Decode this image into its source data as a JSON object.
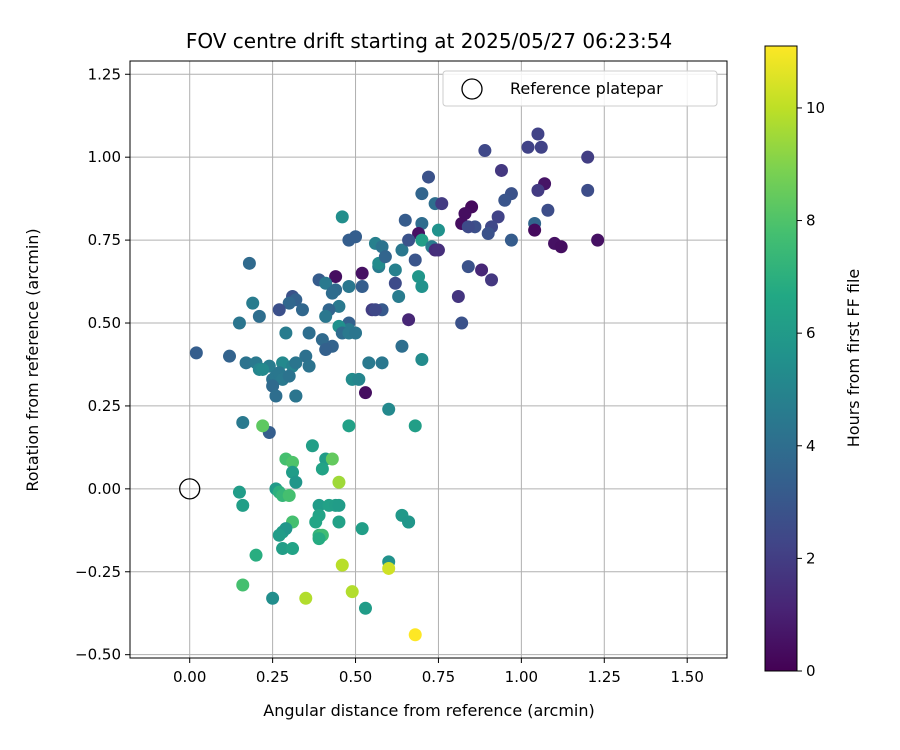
{
  "chart_data": {
    "type": "scatter",
    "title": "FOV centre drift starting at 2025/05/27 06:23:54",
    "xlabel": "Angular distance from reference (arcmin)",
    "ylabel": "Rotation from reference (arcmin)",
    "xlim": [
      -0.18,
      1.62
    ],
    "ylim": [
      -0.51,
      1.29
    ],
    "xticks": [
      0.0,
      0.25,
      0.5,
      0.75,
      1.0,
      1.25,
      1.5
    ],
    "xtick_labels": [
      "0.00",
      "0.25",
      "0.50",
      "0.75",
      "1.00",
      "1.25",
      "1.50"
    ],
    "yticks": [
      -0.5,
      -0.25,
      0.0,
      0.25,
      0.5,
      0.75,
      1.0,
      1.25
    ],
    "ytick_labels": [
      "−0.50",
      "−0.25",
      "0.00",
      "0.25",
      "0.50",
      "0.75",
      "1.00",
      "1.25"
    ],
    "grid": true,
    "legend": {
      "position": "top-right",
      "entries": [
        {
          "label": "Reference platepar",
          "marker": "open-circle",
          "x": 0.0,
          "y": 0.0
        }
      ]
    },
    "colorbar": {
      "label": "Hours from first FF file",
      "colormap": "viridis",
      "range": [
        0,
        11.1
      ],
      "ticks": [
        0,
        2,
        4,
        6,
        8,
        10
      ],
      "tick_labels": [
        "0",
        "2",
        "4",
        "6",
        "8",
        "10"
      ]
    },
    "series": [
      {
        "points": [
          [
            1.05,
            1.07,
            2.2
          ],
          [
            0.89,
            1.02,
            2.4
          ],
          [
            1.02,
            1.03,
            2.2
          ],
          [
            1.06,
            1.03,
            2.2
          ],
          [
            1.2,
            1.0,
            2.0
          ],
          [
            0.94,
            0.96,
            1.8
          ],
          [
            0.72,
            0.94,
            2.8
          ],
          [
            1.07,
            0.92,
            0.6
          ],
          [
            1.05,
            0.9,
            1.9
          ],
          [
            0.7,
            0.89,
            3.6
          ],
          [
            0.97,
            0.89,
            2.8
          ],
          [
            1.2,
            0.9,
            2.6
          ],
          [
            0.74,
            0.86,
            4.0
          ],
          [
            0.76,
            0.86,
            1.9
          ],
          [
            0.85,
            0.85,
            0.3
          ],
          [
            1.08,
            0.84,
            2.6
          ],
          [
            0.83,
            0.83,
            0.4
          ],
          [
            0.95,
            0.87,
            2.9
          ],
          [
            0.93,
            0.82,
            2.2
          ],
          [
            0.46,
            0.82,
            5.4
          ],
          [
            0.65,
            0.81,
            3.2
          ],
          [
            0.7,
            0.8,
            3.9
          ],
          [
            0.82,
            0.8,
            0.4
          ],
          [
            0.86,
            0.79,
            2.7
          ],
          [
            0.84,
            0.79,
            2.5
          ],
          [
            0.91,
            0.79,
            2.4
          ],
          [
            1.04,
            0.8,
            3.6
          ],
          [
            0.9,
            0.77,
            2.8
          ],
          [
            0.69,
            0.77,
            0.5
          ],
          [
            0.75,
            0.78,
            5.6
          ],
          [
            1.04,
            0.78,
            0.3
          ],
          [
            0.64,
            0.72,
            4.4
          ],
          [
            0.66,
            0.75,
            2.8
          ],
          [
            0.7,
            0.75,
            6.2
          ],
          [
            0.73,
            0.73,
            4.6
          ],
          [
            0.5,
            0.76,
            3.3
          ],
          [
            0.48,
            0.75,
            3.3
          ],
          [
            0.56,
            0.74,
            4.8
          ],
          [
            0.58,
            0.73,
            4.2
          ],
          [
            0.97,
            0.75,
            3.2
          ],
          [
            1.1,
            0.74,
            0.5
          ],
          [
            1.12,
            0.73,
            0.4
          ],
          [
            1.23,
            0.75,
            0.5
          ],
          [
            0.74,
            0.72,
            1.4
          ],
          [
            0.75,
            0.72,
            1.5
          ],
          [
            0.68,
            0.69,
            2.9
          ],
          [
            0.57,
            0.67,
            4.6
          ],
          [
            0.18,
            0.68,
            3.8
          ],
          [
            0.57,
            0.68,
            5.3
          ],
          [
            0.59,
            0.7,
            3.6
          ],
          [
            0.62,
            0.66,
            4.8
          ],
          [
            0.52,
            0.65,
            0.5
          ],
          [
            0.44,
            0.64,
            0.4
          ],
          [
            0.84,
            0.67,
            2.8
          ],
          [
            0.88,
            0.66,
            1.2
          ],
          [
            0.91,
            0.63,
            1.8
          ],
          [
            0.39,
            0.63,
            3.2
          ],
          [
            0.41,
            0.62,
            4.5
          ],
          [
            0.52,
            0.61,
            3.3
          ],
          [
            0.62,
            0.62,
            2.5
          ],
          [
            0.69,
            0.64,
            5.8
          ],
          [
            0.7,
            0.61,
            5.6
          ],
          [
            0.48,
            0.61,
            4.4
          ],
          [
            0.44,
            0.6,
            3.8
          ],
          [
            0.43,
            0.59,
            3.9
          ],
          [
            0.31,
            0.58,
            2.8
          ],
          [
            0.32,
            0.57,
            3.4
          ],
          [
            0.3,
            0.56,
            3.7
          ],
          [
            0.34,
            0.54,
            3.7
          ],
          [
            0.19,
            0.56,
            4.6
          ],
          [
            0.63,
            0.58,
            4.6
          ],
          [
            0.81,
            0.58,
            1.7
          ],
          [
            0.45,
            0.55,
            4.5
          ],
          [
            0.42,
            0.54,
            3.6
          ],
          [
            0.55,
            0.54,
            2.0
          ],
          [
            0.58,
            0.54,
            3.1
          ],
          [
            0.56,
            0.54,
            2.4
          ],
          [
            0.27,
            0.54,
            2.7
          ],
          [
            0.41,
            0.52,
            4.4
          ],
          [
            0.21,
            0.52,
            4.0
          ],
          [
            0.15,
            0.5,
            4.3
          ],
          [
            0.48,
            0.5,
            3.4
          ],
          [
            0.48,
            0.48,
            4.5
          ],
          [
            0.45,
            0.49,
            5.5
          ],
          [
            0.82,
            0.5,
            2.8
          ],
          [
            0.66,
            0.51,
            1.2
          ],
          [
            0.29,
            0.47,
            4.6
          ],
          [
            0.36,
            0.47,
            4.0
          ],
          [
            0.46,
            0.47,
            3.9
          ],
          [
            0.48,
            0.47,
            4.5
          ],
          [
            0.5,
            0.47,
            4.3
          ],
          [
            0.4,
            0.45,
            3.8
          ],
          [
            0.43,
            0.43,
            3.5
          ],
          [
            0.64,
            0.43,
            4.0
          ],
          [
            0.35,
            0.4,
            4.1
          ],
          [
            0.41,
            0.42,
            3.4
          ],
          [
            0.02,
            0.41,
            3.3
          ],
          [
            0.12,
            0.4,
            3.5
          ],
          [
            0.17,
            0.38,
            4.2
          ],
          [
            0.2,
            0.38,
            4.5
          ],
          [
            0.24,
            0.37,
            4.6
          ],
          [
            0.28,
            0.38,
            5.2
          ],
          [
            0.31,
            0.37,
            4.9
          ],
          [
            0.32,
            0.38,
            4.3
          ],
          [
            0.36,
            0.37,
            4.2
          ],
          [
            0.54,
            0.38,
            4.5
          ],
          [
            0.58,
            0.38,
            4.4
          ],
          [
            0.7,
            0.39,
            5.3
          ],
          [
            0.21,
            0.36,
            5.0
          ],
          [
            0.22,
            0.36,
            5.2
          ],
          [
            0.25,
            0.33,
            4.1
          ],
          [
            0.26,
            0.34,
            4.4
          ],
          [
            0.27,
            0.35,
            4.4
          ],
          [
            0.28,
            0.33,
            4.5
          ],
          [
            0.3,
            0.34,
            4.2
          ],
          [
            0.25,
            0.31,
            3.8
          ],
          [
            0.26,
            0.28,
            4.0
          ],
          [
            0.32,
            0.28,
            3.9
          ],
          [
            0.32,
            0.28,
            4.3
          ],
          [
            0.49,
            0.33,
            5.3
          ],
          [
            0.51,
            0.33,
            5.0
          ],
          [
            0.53,
            0.29,
            0.4
          ],
          [
            0.6,
            0.24,
            5.2
          ],
          [
            0.16,
            0.2,
            4.5
          ],
          [
            0.24,
            0.17,
            3.3
          ],
          [
            0.22,
            0.19,
            8.3
          ],
          [
            0.68,
            0.19,
            6.2
          ],
          [
            0.48,
            0.19,
            6.3
          ],
          [
            0.37,
            0.13,
            6.2
          ],
          [
            0.29,
            0.09,
            7.8
          ],
          [
            0.31,
            0.08,
            8.0
          ],
          [
            0.41,
            0.09,
            6.1
          ],
          [
            0.43,
            0.09,
            8.4
          ],
          [
            0.4,
            0.06,
            6.4
          ],
          [
            0.31,
            0.05,
            6.1
          ],
          [
            0.32,
            0.02,
            5.8
          ],
          [
            0.45,
            0.02,
            9.5
          ],
          [
            0.15,
            -0.01,
            6.1
          ],
          [
            0.26,
            0.0,
            6.0
          ],
          [
            0.27,
            -0.01,
            7.0
          ],
          [
            0.28,
            -0.02,
            7.3
          ],
          [
            0.3,
            -0.02,
            7.8
          ],
          [
            0.16,
            -0.05,
            6.2
          ],
          [
            0.39,
            -0.05,
            6.1
          ],
          [
            0.42,
            -0.05,
            6.3
          ],
          [
            0.44,
            -0.05,
            6.2
          ],
          [
            0.45,
            -0.05,
            6.1
          ],
          [
            0.39,
            -0.08,
            6.4
          ],
          [
            0.64,
            -0.08,
            5.9
          ],
          [
            0.66,
            -0.1,
            5.9
          ],
          [
            0.66,
            -0.1,
            5.8
          ],
          [
            0.31,
            -0.1,
            7.8
          ],
          [
            0.38,
            -0.1,
            6.5
          ],
          [
            0.45,
            -0.1,
            6.3
          ],
          [
            0.52,
            -0.12,
            6.2
          ],
          [
            0.28,
            -0.13,
            6.2
          ],
          [
            0.29,
            -0.12,
            5.8
          ],
          [
            0.27,
            -0.14,
            6.1
          ],
          [
            0.39,
            -0.14,
            7.2
          ],
          [
            0.4,
            -0.14,
            7.6
          ],
          [
            0.39,
            -0.15,
            6.8
          ],
          [
            0.28,
            -0.18,
            6.2
          ],
          [
            0.31,
            -0.18,
            6.4
          ],
          [
            0.2,
            -0.2,
            6.9
          ],
          [
            0.6,
            -0.22,
            5.6
          ],
          [
            0.46,
            -0.23,
            9.9
          ],
          [
            0.6,
            -0.24,
            10.3
          ],
          [
            0.16,
            -0.29,
            7.8
          ],
          [
            0.49,
            -0.31,
            9.8
          ],
          [
            0.25,
            -0.33,
            5.4
          ],
          [
            0.35,
            -0.33,
            9.8
          ],
          [
            0.53,
            -0.36,
            6.1
          ],
          [
            0.68,
            -0.44,
            11.1
          ]
        ]
      }
    ]
  }
}
